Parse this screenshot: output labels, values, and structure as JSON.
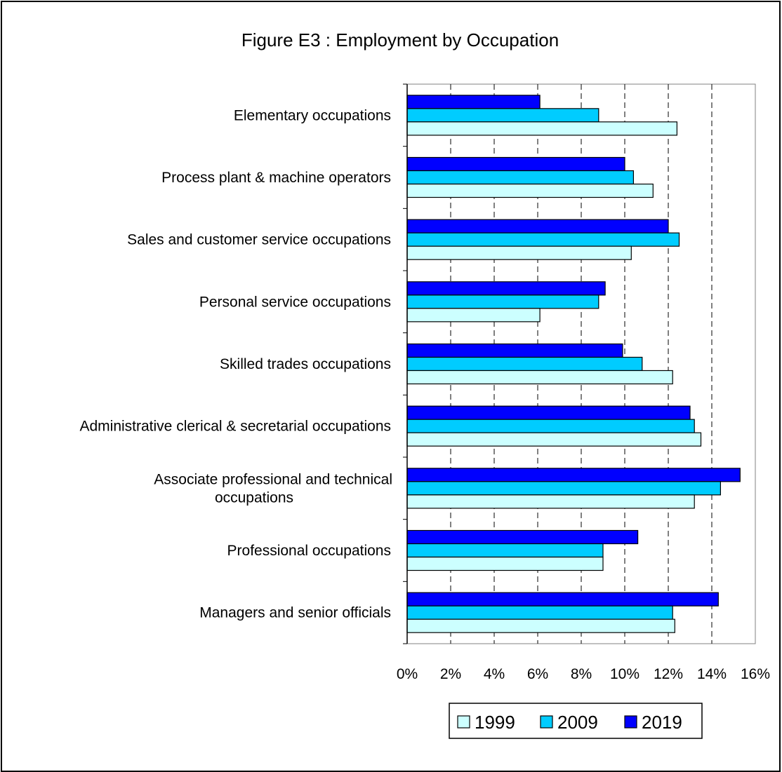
{
  "chart_data": {
    "type": "bar",
    "orientation": "horizontal",
    "title": "Figure E3 : Employment by Occupation",
    "xlabel": "",
    "ylabel": "",
    "xlim": [
      0,
      16
    ],
    "x_ticks": [
      "0%",
      "2%",
      "4%",
      "6%",
      "8%",
      "10%",
      "12%",
      "14%",
      "16%"
    ],
    "grid": "vertical dashed",
    "legend_position": "bottom",
    "categories": [
      [
        "Elementary occupations"
      ],
      [
        "Process plant & machine operators"
      ],
      [
        "Sales and customer service occupations"
      ],
      [
        "Personal service occupations"
      ],
      [
        "Skilled trades occupations"
      ],
      [
        "Administrative clerical & secretarial occupations"
      ],
      [
        "Associate professional and technical",
        "occupations"
      ],
      [
        "Professional occupations"
      ],
      [
        "Managers and senior officials"
      ]
    ],
    "series": [
      {
        "name": "2019",
        "color": "#0000FF",
        "values": [
          6.1,
          10.0,
          12.0,
          9.1,
          9.9,
          13.0,
          15.3,
          10.6,
          14.3
        ]
      },
      {
        "name": "2009",
        "color": "#00CCFF",
        "values": [
          8.8,
          10.4,
          12.5,
          8.8,
          10.8,
          13.2,
          14.4,
          9.0,
          12.2
        ]
      },
      {
        "name": "1999",
        "color": "#CCFFFF",
        "values": [
          12.4,
          11.3,
          10.3,
          6.1,
          12.2,
          13.5,
          13.2,
          9.0,
          12.3
        ]
      }
    ],
    "legend_order": [
      "1999",
      "2009",
      "2019"
    ]
  }
}
